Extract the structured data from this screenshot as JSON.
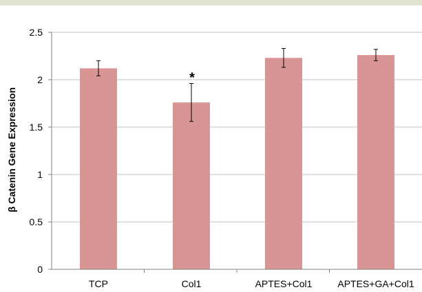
{
  "chart_data": {
    "type": "bar",
    "title": "",
    "xlabel": "",
    "ylabel": "β Catenin Gene Expression",
    "ylim": [
      0,
      2.5
    ],
    "yticks": [
      "0",
      "0.5",
      "1",
      "1.5",
      "2",
      "2.5"
    ],
    "grid": true,
    "legend": "none",
    "categories": [
      "TCP",
      "Col1",
      "APTES+Col1",
      "APTES+GA+Col1"
    ],
    "values": [
      2.12,
      1.76,
      2.23,
      2.26
    ],
    "errors": [
      0.08,
      0.2,
      0.1,
      0.06
    ],
    "annotations": [
      {
        "category": "Col1",
        "text": "*"
      }
    ],
    "colors": {
      "bar": "#d99594",
      "grid": "#c0c0c0",
      "axis": "#808080"
    }
  }
}
